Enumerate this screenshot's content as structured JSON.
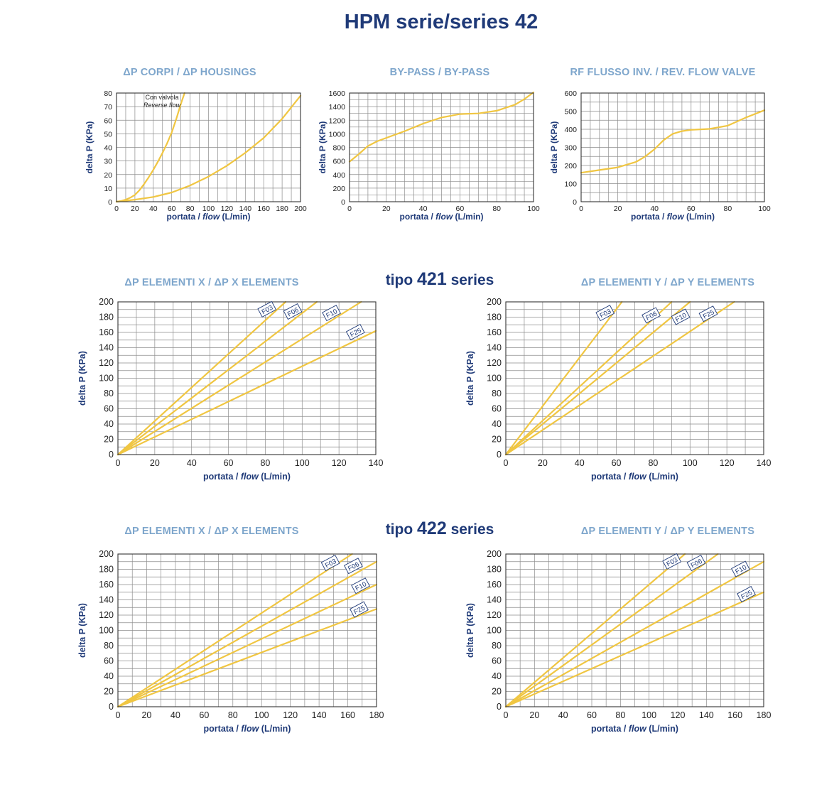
{
  "page": {
    "title": "HPM serie/series 42",
    "sections": [
      {
        "prefix": "tipo",
        "code": "421",
        "suffix": "series"
      },
      {
        "prefix": "tipo",
        "code": "422",
        "suffix": "series"
      }
    ]
  },
  "colors": {
    "title": "#1f3a78",
    "chart_title": "#7ea6cc",
    "line": "#f0c642",
    "grid": "#8c8c8c"
  },
  "chart_data": [
    {
      "id": "housings",
      "type": "line",
      "title": "ΔP CORPI / ΔP HOUSINGS",
      "xlabel_it": "portata",
      "xlabel_sep": " / ",
      "xlabel_en": "flow",
      "xlabel_unit": " (L/min)",
      "ylabel": "delta P (KPa)",
      "xlim": [
        0,
        200
      ],
      "ylim": [
        0,
        80
      ],
      "xticks": [
        0,
        20,
        40,
        60,
        80,
        100,
        120,
        140,
        160,
        180,
        200
      ],
      "yticks": [
        0,
        10,
        20,
        30,
        40,
        50,
        60,
        70,
        80
      ],
      "xgrid": [
        0,
        10,
        20,
        30,
        40,
        50,
        60,
        70,
        80,
        90,
        100,
        110,
        120,
        130,
        140,
        150,
        160,
        170,
        180,
        190,
        200
      ],
      "ygrid": [
        0,
        10,
        20,
        30,
        40,
        50,
        60,
        70,
        80
      ],
      "annotations": [
        "Con valvola",
        "Reverse flow"
      ],
      "series": [
        {
          "x": [
            0,
            5,
            10,
            15,
            20,
            25,
            30,
            35,
            40,
            45,
            50,
            55,
            60,
            65,
            70,
            74
          ],
          "y": [
            0,
            0.6,
            1.5,
            3,
            5,
            8.5,
            13,
            18,
            23.5,
            29.5,
            36,
            43,
            51,
            61,
            72,
            80
          ]
        },
        {
          "x": [
            0,
            20,
            40,
            60,
            80,
            100,
            120,
            140,
            160,
            180,
            200
          ],
          "y": [
            0,
            1.5,
            3.5,
            6.8,
            12,
            18.5,
            26.5,
            36,
            47,
            61,
            78
          ]
        }
      ]
    },
    {
      "id": "bypass",
      "type": "line",
      "title": "BY-PASS / BY-PASS",
      "xlabel_it": "portata",
      "xlabel_sep": " / ",
      "xlabel_en": "flow",
      "xlabel_unit": " (L/min)",
      "ylabel": "delta P (KPa)",
      "xlim": [
        0,
        100
      ],
      "ylim": [
        0,
        1600
      ],
      "xticks": [
        0,
        20,
        40,
        60,
        80,
        100
      ],
      "yticks": [
        0,
        200,
        400,
        600,
        800,
        1000,
        1200,
        1400,
        1600
      ],
      "xgrid": [
        0,
        5,
        10,
        15,
        20,
        25,
        30,
        35,
        40,
        45,
        50,
        55,
        60,
        65,
        70,
        75,
        80,
        85,
        90,
        95,
        100
      ],
      "ygrid": [
        0,
        100,
        200,
        300,
        400,
        500,
        600,
        700,
        800,
        900,
        1000,
        1100,
        1200,
        1300,
        1400,
        1500,
        1600
      ],
      "series": [
        {
          "x": [
            0,
            5,
            10,
            15,
            20,
            30,
            40,
            50,
            60,
            70,
            80,
            90,
            95,
            100
          ],
          "y": [
            590,
            700,
            820,
            890,
            940,
            1040,
            1150,
            1240,
            1290,
            1300,
            1340,
            1430,
            1510,
            1610
          ]
        }
      ]
    },
    {
      "id": "rf_valve",
      "type": "line",
      "title": "RF FLUSSO INV. / REV. FLOW VALVE",
      "xlabel_it": "portata",
      "xlabel_sep": " / ",
      "xlabel_en": "flow",
      "xlabel_unit": " (L/min)",
      "ylabel": "delta P (KPa)",
      "xlim": [
        0,
        100
      ],
      "ylim": [
        0,
        600
      ],
      "xticks": [
        0,
        20,
        40,
        60,
        80,
        100
      ],
      "yticks": [
        0,
        100,
        200,
        300,
        400,
        500,
        600
      ],
      "xgrid": [
        0,
        5,
        10,
        15,
        20,
        25,
        30,
        35,
        40,
        45,
        50,
        55,
        60,
        65,
        70,
        75,
        80,
        85,
        90,
        95,
        100
      ],
      "ygrid": [
        0,
        50,
        100,
        150,
        200,
        250,
        300,
        350,
        400,
        450,
        500,
        550,
        600
      ],
      "series": [
        {
          "x": [
            0,
            10,
            20,
            30,
            35,
            40,
            45,
            50,
            55,
            60,
            70,
            80,
            90,
            100
          ],
          "y": [
            160,
            175,
            190,
            220,
            250,
            290,
            340,
            375,
            390,
            397,
            402,
            420,
            465,
            505
          ]
        }
      ]
    },
    {
      "id": "x421",
      "type": "line",
      "title": "ΔP ELEMENTI X / ΔP X ELEMENTS",
      "xlabel_it": "portata",
      "xlabel_sep": " / ",
      "xlabel_en": "flow",
      "xlabel_unit": " (L/min)",
      "ylabel": "delta P (KPa)",
      "xlim": [
        0,
        140
      ],
      "ylim": [
        0,
        200
      ],
      "xticks": [
        0,
        20,
        40,
        60,
        80,
        100,
        120,
        140
      ],
      "yticks": [
        0,
        20,
        40,
        60,
        80,
        100,
        120,
        140,
        160,
        180,
        200
      ],
      "xgrid": [
        0,
        10,
        20,
        30,
        40,
        50,
        60,
        70,
        80,
        90,
        100,
        110,
        120,
        130,
        140
      ],
      "ygrid": [
        0,
        10,
        20,
        30,
        40,
        50,
        60,
        70,
        80,
        90,
        100,
        110,
        120,
        130,
        140,
        150,
        160,
        170,
        180,
        190,
        200
      ],
      "series": [
        {
          "name": "F03",
          "x": [
            0,
            91
          ],
          "y": [
            0,
            200
          ],
          "label_at": [
            81,
            190
          ]
        },
        {
          "name": "F06",
          "x": [
            0,
            108
          ],
          "y": [
            0,
            200
          ],
          "label_at": [
            95,
            187
          ]
        },
        {
          "name": "F10",
          "x": [
            0,
            132
          ],
          "y": [
            0,
            200
          ],
          "label_at": [
            116,
            185
          ]
        },
        {
          "name": "F25",
          "x": [
            0,
            140
          ],
          "y": [
            0,
            162
          ],
          "label_at": [
            129,
            160
          ]
        }
      ]
    },
    {
      "id": "y421",
      "type": "line",
      "title": "ΔP ELEMENTI Y / ΔP Y ELEMENTS",
      "xlabel_it": "portata",
      "xlabel_sep": " / ",
      "xlabel_en": "flow",
      "xlabel_unit": " (L/min)",
      "ylabel": "delta P (KPa)",
      "xlim": [
        0,
        140
      ],
      "ylim": [
        0,
        200
      ],
      "xticks": [
        0,
        20,
        40,
        60,
        80,
        100,
        120,
        140
      ],
      "yticks": [
        0,
        20,
        40,
        60,
        80,
        100,
        120,
        140,
        160,
        180,
        200
      ],
      "xgrid": [
        0,
        10,
        20,
        30,
        40,
        50,
        60,
        70,
        80,
        90,
        100,
        110,
        120,
        130,
        140
      ],
      "ygrid": [
        0,
        10,
        20,
        30,
        40,
        50,
        60,
        70,
        80,
        90,
        100,
        110,
        120,
        130,
        140,
        150,
        160,
        170,
        180,
        190,
        200
      ],
      "series": [
        {
          "name": "F03",
          "x": [
            0,
            63
          ],
          "y": [
            0,
            200
          ],
          "label_at": [
            54,
            185
          ]
        },
        {
          "name": "F06",
          "x": [
            0,
            90
          ],
          "y": [
            0,
            200
          ],
          "label_at": [
            79,
            182
          ]
        },
        {
          "name": "F10",
          "x": [
            0,
            100
          ],
          "y": [
            0,
            200
          ],
          "label_at": [
            95,
            180
          ]
        },
        {
          "name": "F25",
          "x": [
            0,
            124
          ],
          "y": [
            0,
            200
          ],
          "label_at": [
            110,
            184
          ]
        }
      ]
    },
    {
      "id": "x422",
      "type": "line",
      "title": "ΔP ELEMENTI X / ΔP X ELEMENTS",
      "xlabel_it": "portata",
      "xlabel_sep": " / ",
      "xlabel_en": "flow",
      "xlabel_unit": " (L/min)",
      "ylabel": "delta P (KPa)",
      "xlim": [
        0,
        180
      ],
      "ylim": [
        0,
        200
      ],
      "xticks": [
        0,
        20,
        40,
        60,
        80,
        100,
        120,
        140,
        160,
        180
      ],
      "yticks": [
        0,
        20,
        40,
        60,
        80,
        100,
        120,
        140,
        160,
        180,
        200
      ],
      "xgrid": [
        0,
        10,
        20,
        30,
        40,
        50,
        60,
        70,
        80,
        90,
        100,
        110,
        120,
        130,
        140,
        150,
        160,
        170,
        180
      ],
      "ygrid": [
        0,
        10,
        20,
        30,
        40,
        50,
        60,
        70,
        80,
        90,
        100,
        110,
        120,
        130,
        140,
        150,
        160,
        170,
        180,
        190,
        200
      ],
      "series": [
        {
          "name": "F03",
          "x": [
            0,
            163
          ],
          "y": [
            0,
            200
          ],
          "label_at": [
            148,
            188
          ]
        },
        {
          "name": "F06",
          "x": [
            0,
            180
          ],
          "y": [
            0,
            190
          ],
          "label_at": [
            164,
            184
          ]
        },
        {
          "name": "F10",
          "x": [
            0,
            180
          ],
          "y": [
            0,
            160
          ],
          "label_at": [
            169,
            158
          ]
        },
        {
          "name": "F25",
          "x": [
            0,
            180
          ],
          "y": [
            0,
            128
          ],
          "label_at": [
            168,
            127
          ]
        }
      ]
    },
    {
      "id": "y422",
      "type": "line",
      "title": "ΔP ELEMENTI Y / ΔP Y ELEMENTS",
      "xlabel_it": "portata",
      "xlabel_sep": " / ",
      "xlabel_en": "flow",
      "xlabel_unit": " (L/min)",
      "ylabel": "delta P (KPa)",
      "xlim": [
        0,
        180
      ],
      "ylim": [
        0,
        200
      ],
      "xticks": [
        0,
        20,
        40,
        60,
        80,
        100,
        120,
        140,
        160,
        180
      ],
      "yticks": [
        0,
        20,
        40,
        60,
        80,
        100,
        120,
        140,
        160,
        180,
        200
      ],
      "xgrid": [
        0,
        10,
        20,
        30,
        40,
        50,
        60,
        70,
        80,
        90,
        100,
        110,
        120,
        130,
        140,
        150,
        160,
        170,
        180
      ],
      "ygrid": [
        0,
        10,
        20,
        30,
        40,
        50,
        60,
        70,
        80,
        90,
        100,
        110,
        120,
        130,
        140,
        150,
        160,
        170,
        180,
        190,
        200
      ],
      "series": [
        {
          "name": "F03",
          "x": [
            0,
            125
          ],
          "y": [
            0,
            200
          ],
          "label_at": [
            116,
            190
          ]
        },
        {
          "name": "F06",
          "x": [
            0,
            148
          ],
          "y": [
            0,
            200
          ],
          "label_at": [
            133,
            188
          ]
        },
        {
          "name": "F10",
          "x": [
            0,
            180
          ],
          "y": [
            0,
            190
          ],
          "label_at": [
            164,
            180
          ]
        },
        {
          "name": "F25",
          "x": [
            0,
            180
          ],
          "y": [
            0,
            150
          ],
          "label_at": [
            168,
            147
          ]
        }
      ]
    }
  ]
}
